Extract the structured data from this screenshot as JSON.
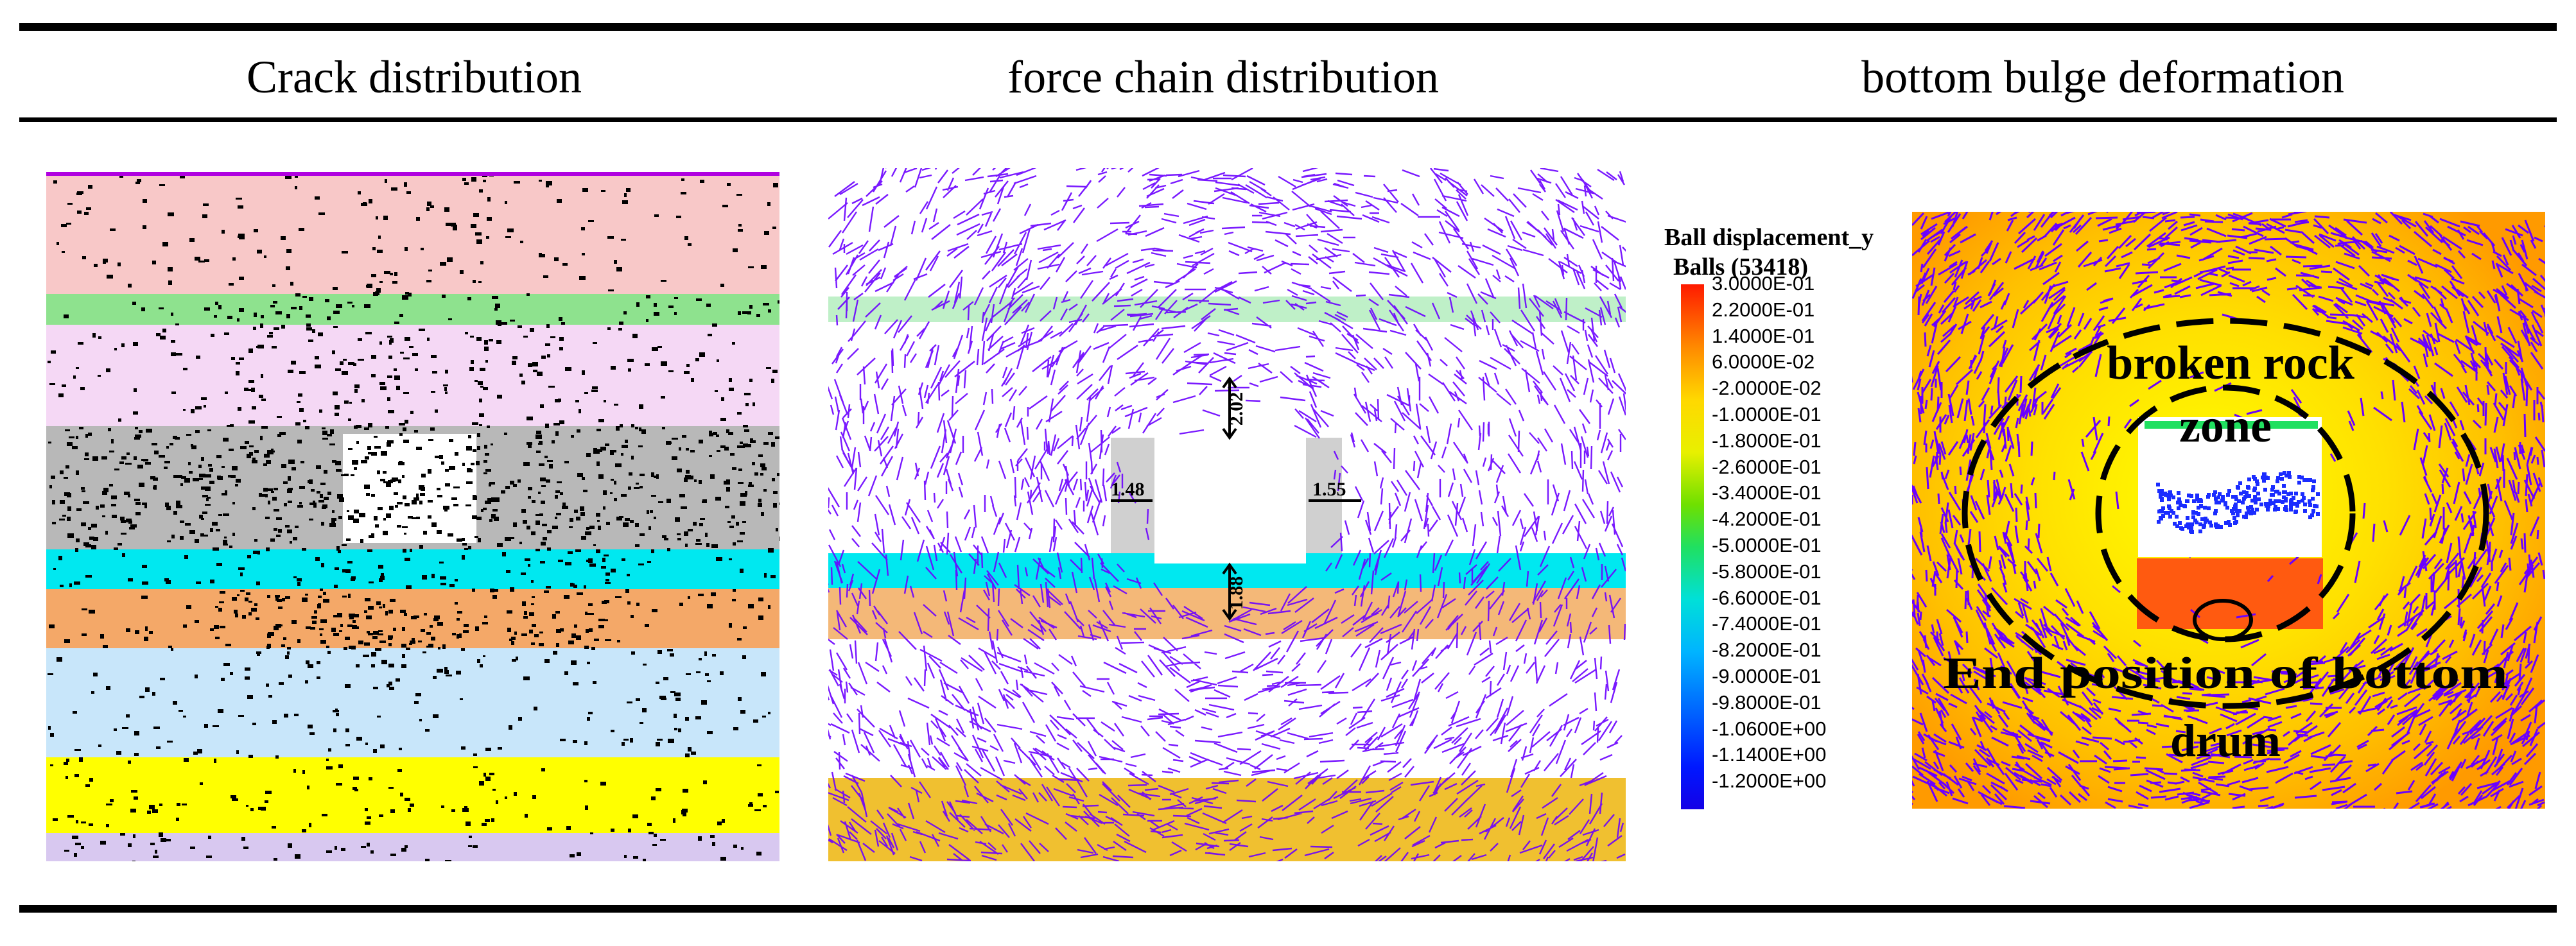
{
  "header": {
    "col1": "Crack distribution",
    "col2": "force chain distribution",
    "col3": "bottom bulge deformation"
  },
  "force_chain": {
    "dim_top": "2.02",
    "dim_left": "1.48",
    "dim_right": "1.55",
    "dim_bottom": "1.88"
  },
  "legend": {
    "title": "Ball displacement_y",
    "subtitle": "Balls (53418)",
    "ticks": [
      "3.0000E-01",
      "2.2000E-01",
      "1.4000E-01",
      "6.0000E-02",
      "-2.0000E-02",
      "-1.0000E-01",
      "-1.8000E-01",
      "-2.6000E-01",
      "-3.4000E-01",
      "-4.2000E-01",
      "-5.0000E-01",
      "-5.8000E-01",
      "-6.6000E-01",
      "-7.4000E-01",
      "-8.2000E-01",
      "-9.0000E-01",
      "-9.8000E-01",
      "-1.0600E+00",
      "-1.1400E+00",
      "-1.2000E+00"
    ]
  },
  "bulge": {
    "label_zone_1": "broken rock",
    "label_zone_2": "zone",
    "label_end_1": "End position of bottom",
    "label_end_2": "drum"
  },
  "colors": {
    "crack": "#000000",
    "force_chain": "#6a00ff",
    "layers": [
      "#f8c8c8",
      "#8ee28e",
      "#f5d8f5",
      "#b8b8b8",
      "#00e8f0",
      "#f4a868",
      "#c8e6fa",
      "#ffff00",
      "#d8c8f0"
    ]
  }
}
